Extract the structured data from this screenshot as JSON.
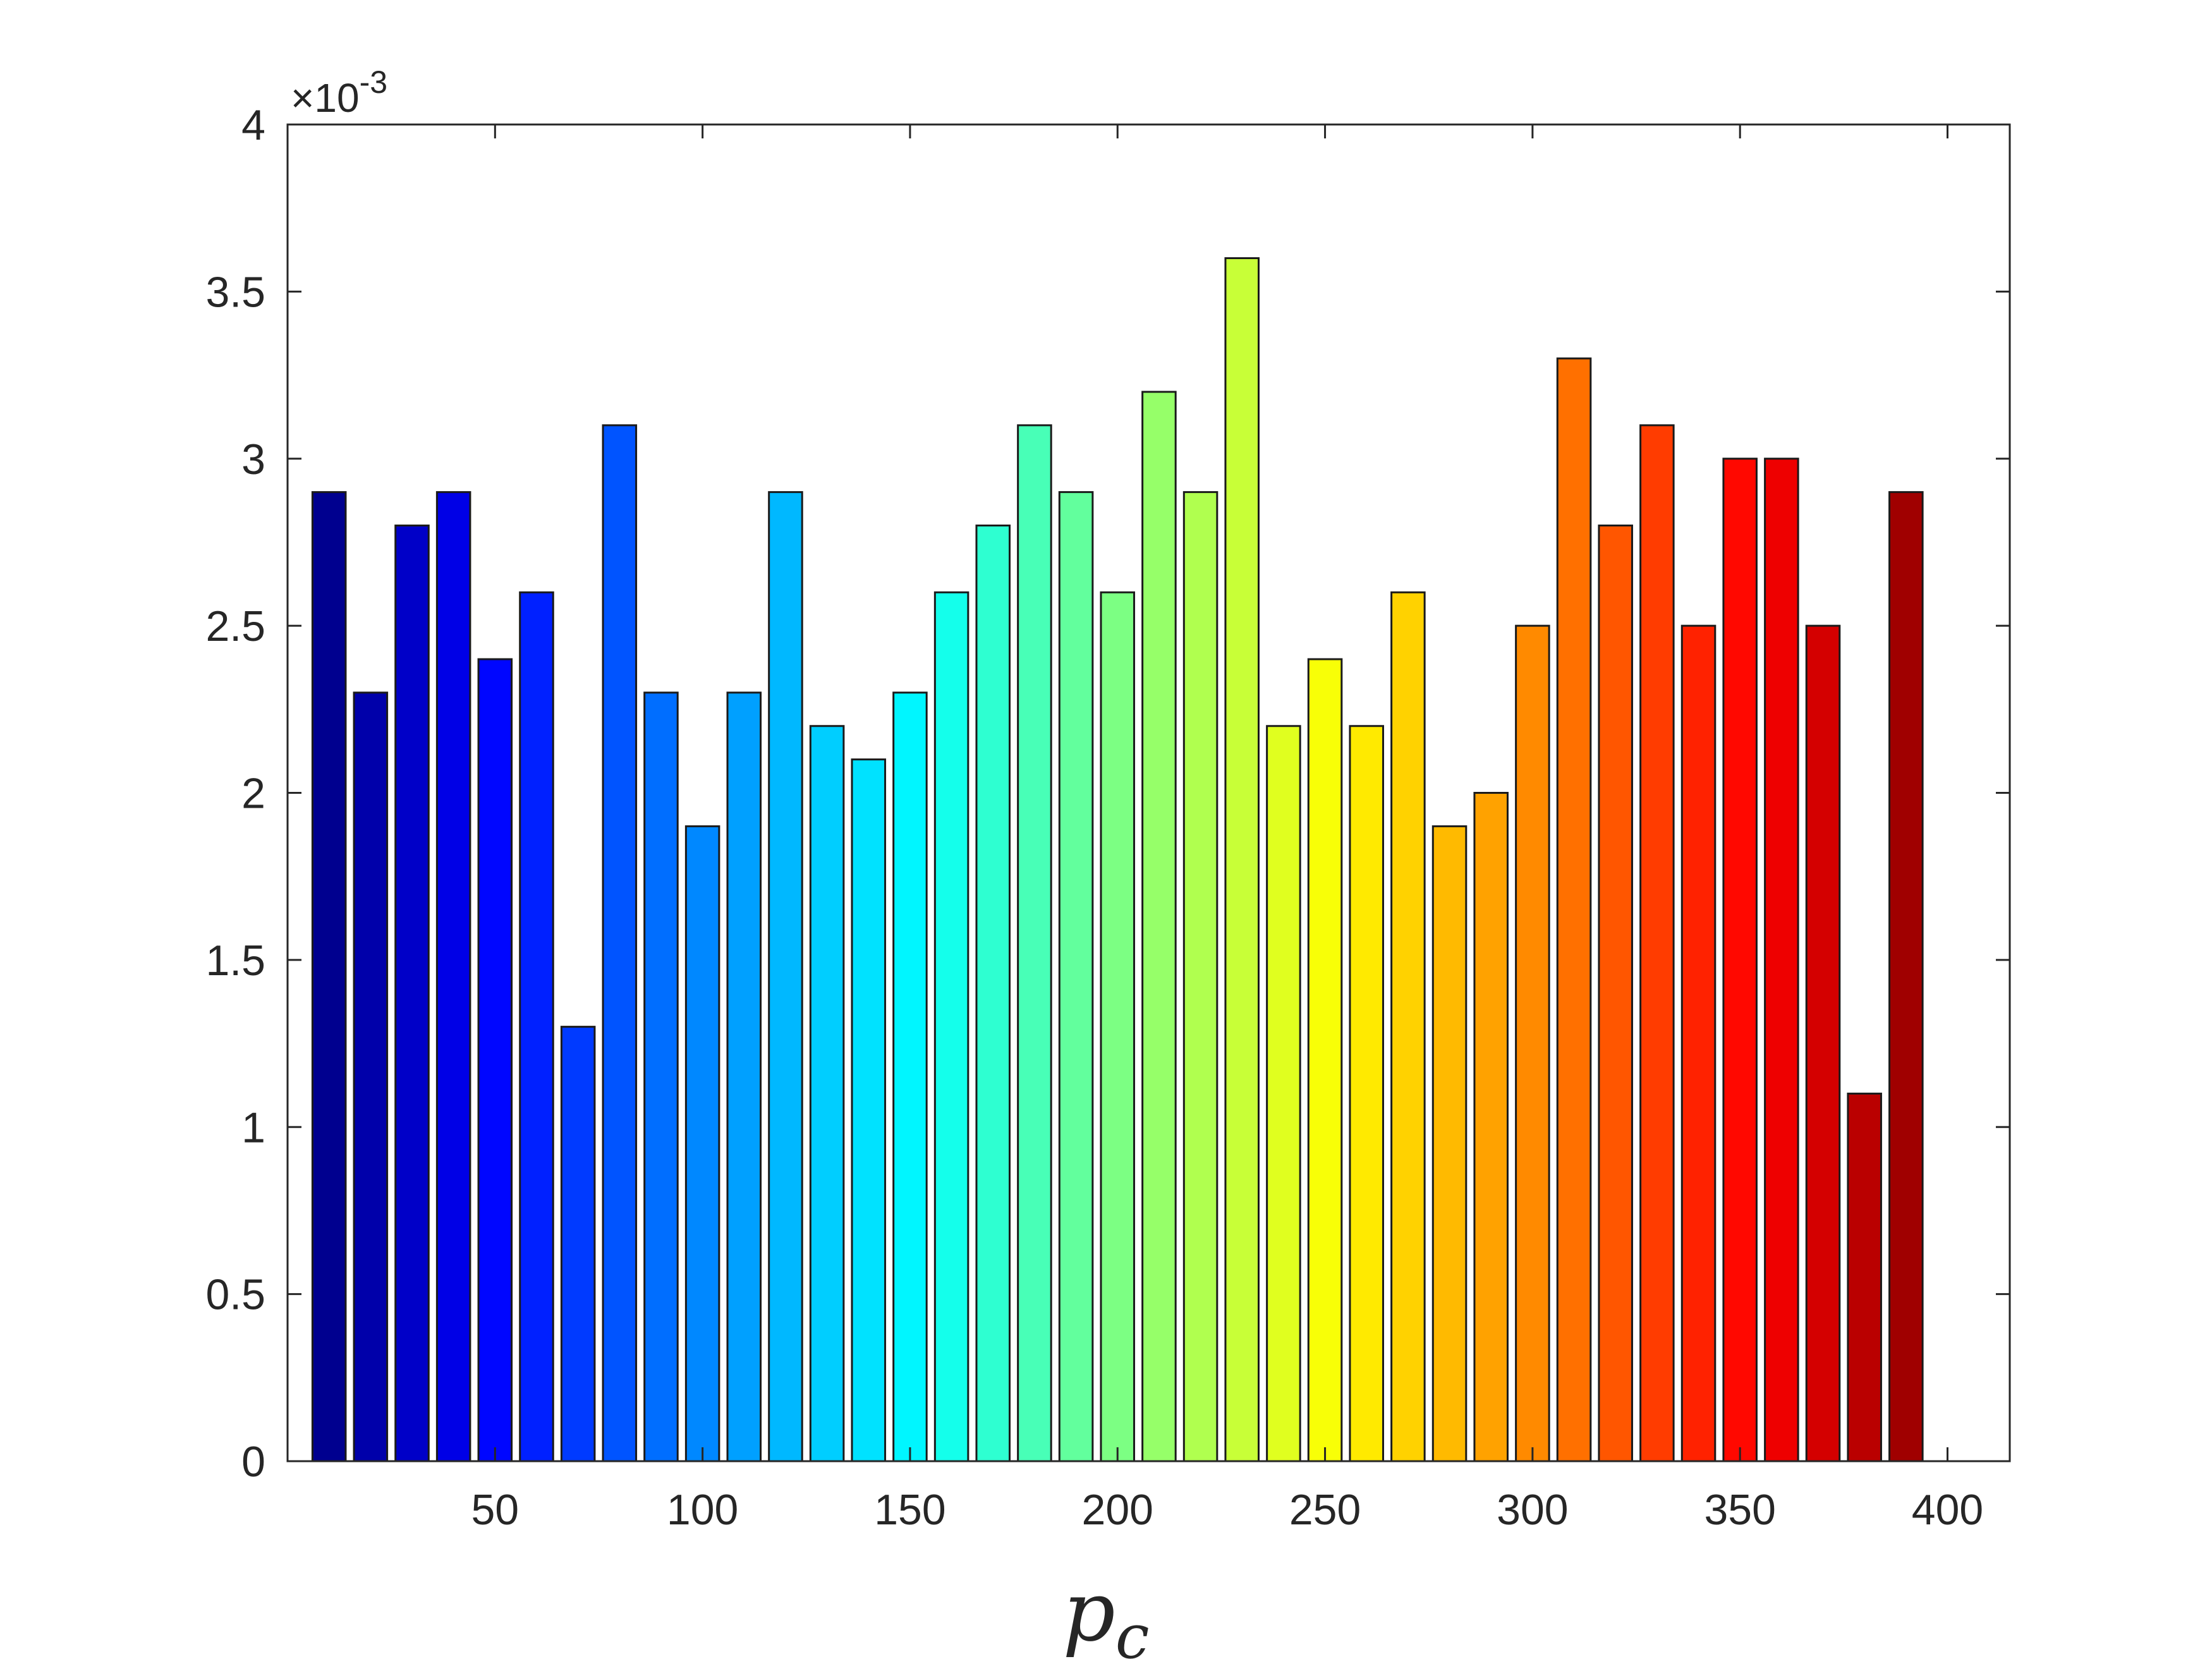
{
  "chart_data": {
    "type": "bar",
    "title": "",
    "xlabel": "p",
    "xlabel_subscript": "c",
    "ylabel": "",
    "y_multiplier_prefix": "×10",
    "y_multiplier_exponent": "-3",
    "xlim": [
      0,
      415
    ],
    "ylim": [
      0,
      4
    ],
    "xticks": [
      50,
      100,
      150,
      200,
      250,
      300,
      350,
      400
    ],
    "yticks": [
      0,
      0.5,
      1,
      1.5,
      2,
      2.5,
      3,
      3.5,
      4
    ],
    "ytick_labels": [
      "0",
      "0.5",
      "1",
      "1.5",
      "2",
      "2.5",
      "3",
      "3.5",
      "4"
    ],
    "grid": false,
    "x": [
      10,
      20,
      30,
      40,
      50,
      60,
      70,
      80,
      90,
      100,
      110,
      120,
      130,
      140,
      150,
      160,
      170,
      180,
      190,
      200,
      210,
      220,
      230,
      240,
      250,
      260,
      270,
      280,
      290,
      300,
      310,
      320,
      330,
      340,
      350,
      360,
      370,
      380,
      390,
      400
    ],
    "values": [
      2.9,
      2.3,
      2.8,
      2.9,
      2.4,
      2.6,
      1.3,
      3.1,
      2.3,
      1.9,
      2.3,
      2.9,
      2.2,
      2.1,
      2.3,
      2.6,
      2.8,
      3.1,
      2.9,
      2.6,
      3.2,
      2.9,
      3.6,
      2.2,
      2.4,
      2.2,
      2.6,
      1.9,
      2.0,
      2.5,
      3.3,
      2.8,
      3.1,
      2.5,
      3.0,
      3.0,
      2.5,
      1.1,
      2.9,
      0
    ],
    "colors": [
      "#00008F",
      "#0000AF",
      "#0000CF",
      "#0000EF",
      "#0010FF",
      "#0030FF",
      "#0050FF",
      "#0070FF",
      "#0090FF",
      "#00A8FF",
      "#00BFFF",
      "#00D5FF",
      "#00ECFF",
      "#10FFEF",
      "#30FFCF",
      "#50FFAF",
      "#70FF8F",
      "#90FF6F",
      "#B0FF4F",
      "#CFFF30",
      "#EFFF10",
      "#FFEC00",
      "#FFD500",
      "#FFBF00",
      "#FFA800",
      "#FF9000",
      "#FF7000",
      "#FF5000",
      "#FF3000",
      "#FF1000",
      "#EF0000",
      "#CF0000",
      "#AF0000",
      "#8F0000"
    ],
    "bar_colors": [
      "#00008F",
      "#0000AA",
      "#0000C8",
      "#0000E6",
      "#0006FF",
      "#0020FF",
      "#003AFF",
      "#0054FF",
      "#006EFF",
      "#0088FF",
      "#00A0FF",
      "#00B8FF",
      "#00CEFF",
      "#00E2FF",
      "#00F6FF",
      "#14FFEB",
      "#2EFFD1",
      "#48FFB7",
      "#62FF9D",
      "#7CFF83",
      "#96FF69",
      "#B0FF4F",
      "#C8FF37",
      "#E0FF1F",
      "#F8FF07",
      "#FFEA00",
      "#FFD200",
      "#FFBA00",
      "#FFA200",
      "#FF8A00",
      "#FF7000",
      "#FF5600",
      "#FF3C00",
      "#FF2200",
      "#FF0800",
      "#EE0000",
      "#D40000",
      "#BA0000",
      "#A00000",
      "#8F0000"
    ]
  }
}
